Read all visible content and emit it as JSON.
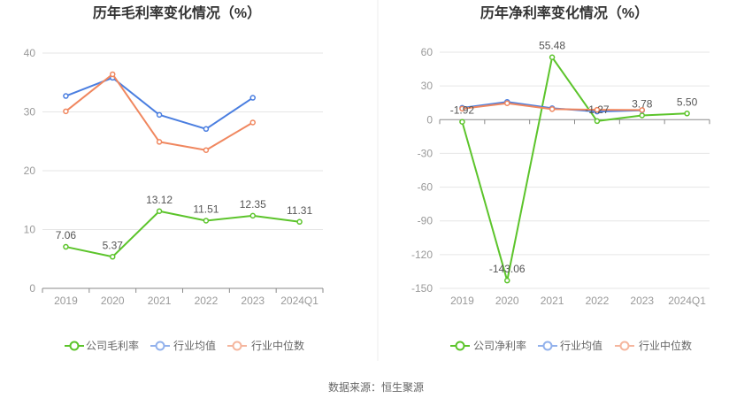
{
  "source": "数据来源：恒生聚源",
  "chart_data": [
    {
      "type": "line",
      "title": "历年毛利率变化情况（%）",
      "categories": [
        "2019",
        "2020",
        "2021",
        "2022",
        "2023",
        "2024Q1"
      ],
      "ylim": [
        0,
        40
      ],
      "yticks": [
        0,
        10,
        20,
        30,
        40
      ],
      "grid": true,
      "legend_position": "bottom",
      "series": [
        {
          "name": "公司毛利率",
          "color": "#5cc42b",
          "values": [
            7.06,
            5.37,
            13.12,
            11.51,
            12.35,
            11.31
          ],
          "labels": [
            "7.06",
            "5.37",
            "13.12",
            "11.51",
            "12.35",
            "11.31"
          ]
        },
        {
          "name": "行业均值",
          "color": "#4a7ee0",
          "values": [
            32.7,
            35.8,
            29.5,
            27.1,
            32.4,
            null
          ]
        },
        {
          "name": "行业中位数",
          "color": "#f0875f",
          "values": [
            30.1,
            36.4,
            24.9,
            23.5,
            28.2,
            null
          ]
        }
      ]
    },
    {
      "type": "line",
      "title": "历年净利率变化情况（%）",
      "categories": [
        "2019",
        "2020",
        "2021",
        "2022",
        "2023",
        "2024Q1"
      ],
      "ylim": [
        -150,
        60
      ],
      "yticks": [
        -150,
        -120,
        -90,
        -60,
        -30,
        0,
        30,
        60
      ],
      "grid": true,
      "legend_position": "bottom",
      "series": [
        {
          "name": "公司净利率",
          "color": "#5cc42b",
          "values": [
            -1.92,
            -143.06,
            55.48,
            -1.27,
            3.78,
            5.5
          ],
          "labels": [
            "-1.92",
            "-143.06",
            "55.48",
            "-1.27",
            "3.78",
            "5.50"
          ]
        },
        {
          "name": "行业均值",
          "color": "#4a7ee0",
          "values": [
            10.5,
            15.8,
            10.2,
            7.2,
            8.3,
            null
          ]
        },
        {
          "name": "行业中位数",
          "color": "#f0875f",
          "values": [
            9.8,
            14.6,
            9.4,
            8.8,
            8.6,
            null
          ]
        }
      ]
    }
  ]
}
